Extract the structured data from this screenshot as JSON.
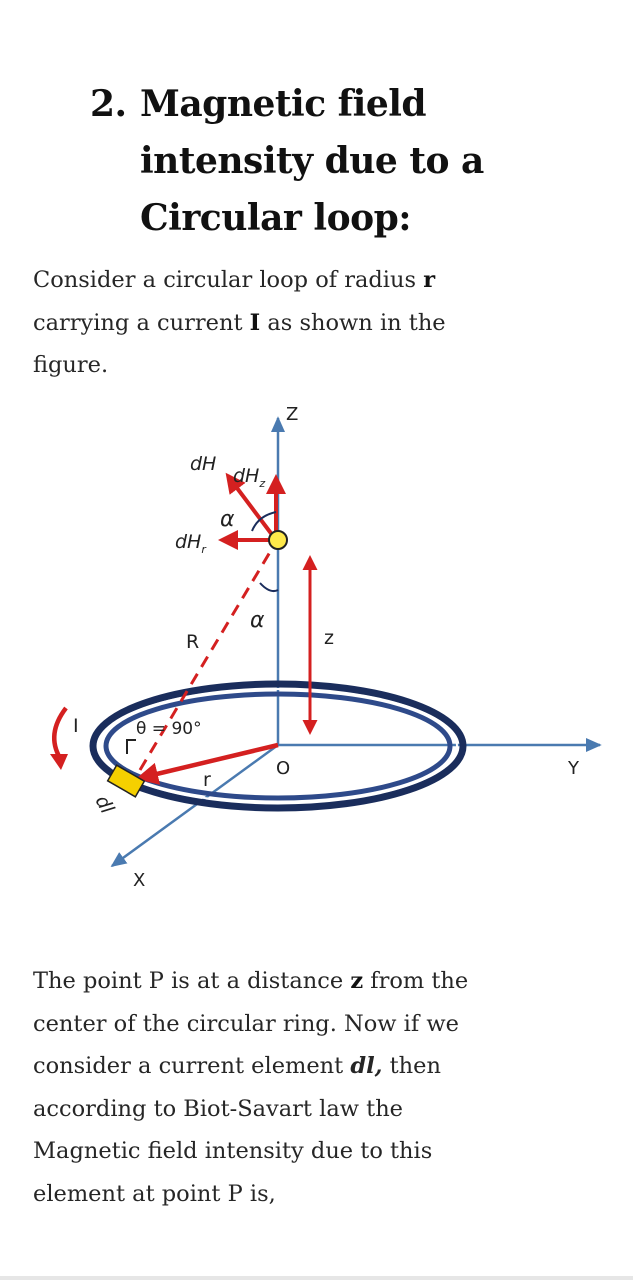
{
  "heading": {
    "number": "2.",
    "lines": [
      "Magnetic field",
      "intensity due to a",
      "Circular loop:"
    ]
  },
  "intro": {
    "line1_a": "Consider a circular loop of radius ",
    "line1_b": "r",
    "line2_a": "carrying a current ",
    "line2_b": "I",
    "line2_c": " as shown in the",
    "line3": "figure."
  },
  "figure": {
    "labels": {
      "z_axis": "Z",
      "y_axis": "Y",
      "x_axis": "X",
      "origin": "O",
      "dH": "dH",
      "dHz": "dHz",
      "dHz_base": "dH",
      "dHz_sub": "z",
      "dHr_base": "dH",
      "dHr_sub": "r",
      "alpha_top": "α",
      "alpha_mid": "α",
      "R": "R",
      "z_distance": "z",
      "current": "I",
      "theta": "θ = 90°",
      "r": "r",
      "dl": "dl"
    },
    "colors": {
      "axis": "#4a7ab0",
      "vector": "#d42020",
      "loop_outer": "#1a2d5c",
      "loop_inner": "#2e4a8a",
      "point": "#ffe94a",
      "element": "#f5d000"
    }
  },
  "body": {
    "l1_a": "The point P is at a distance ",
    "l1_b": "z",
    "l1_c": " from the",
    "l2": "center of the circular ring. Now if we",
    "l3_a": "consider a current element ",
    "l3_b": "dl,",
    "l3_c": " then",
    "l4": "according to Biot-Savart law the",
    "l5": "Magnetic field intensity due to this",
    "l6": "element at point P is,"
  }
}
